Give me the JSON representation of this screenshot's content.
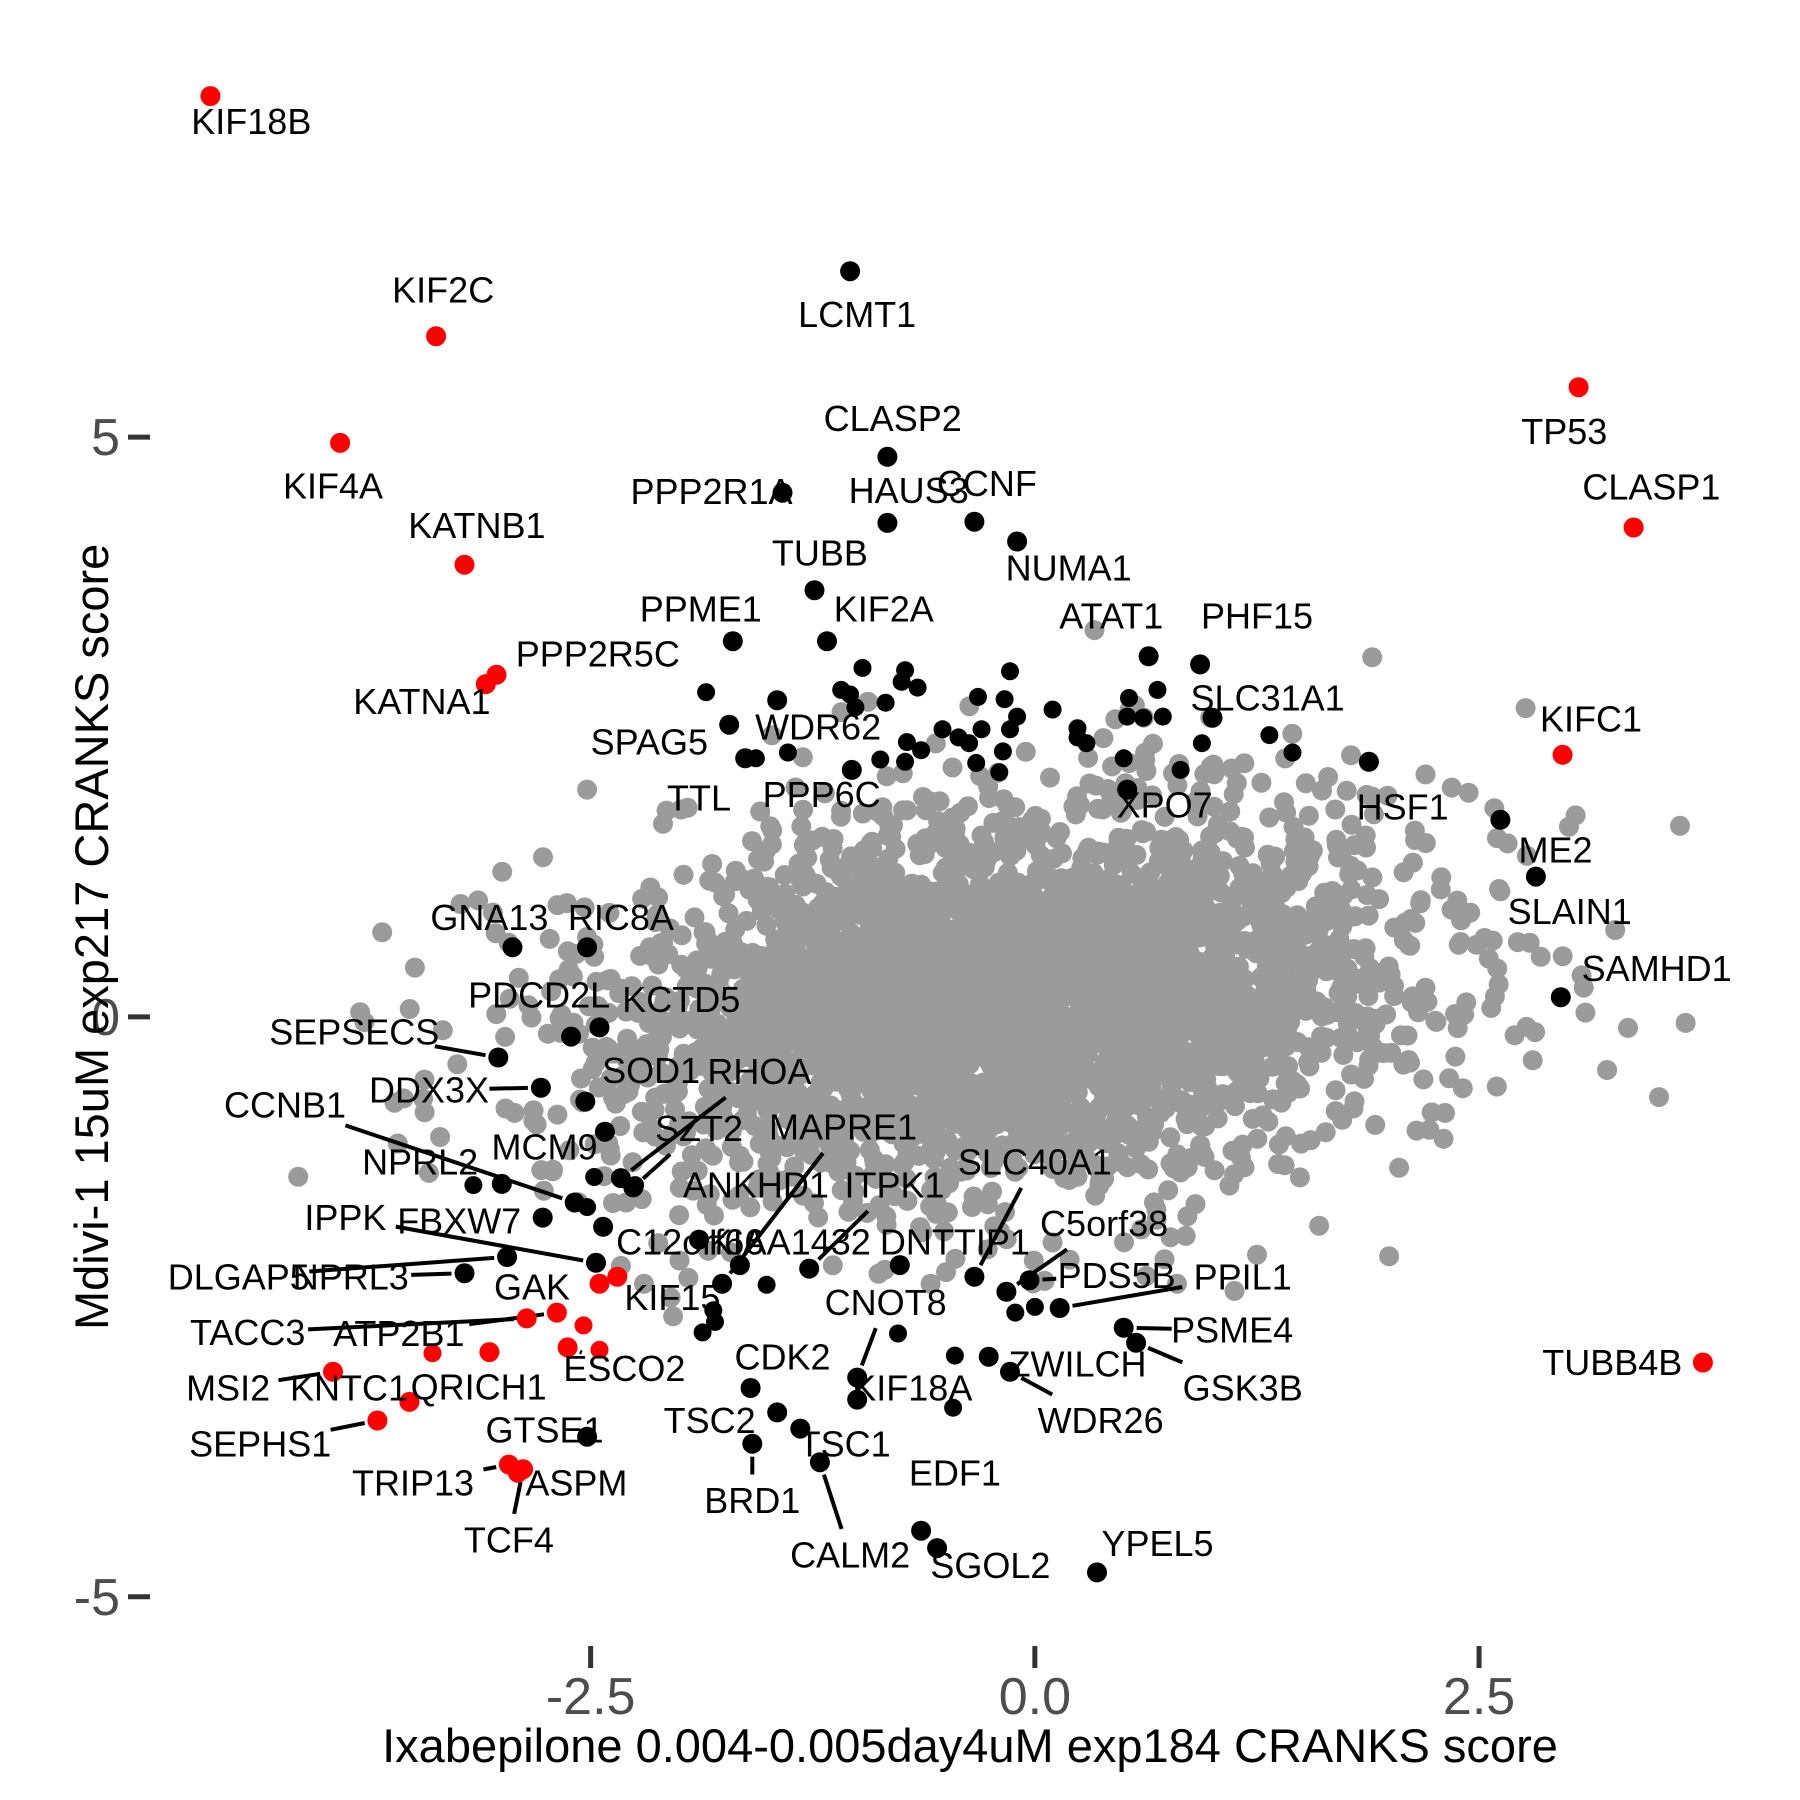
{
  "chart_data": {
    "type": "scatter",
    "title": "",
    "xlabel": "Ixabepilone 0.004-0.005day4uM exp184 CRANKS score",
    "ylabel": "Mdivi-1 15uM exp217 CRANKS score",
    "xlim": [
      -4.98,
      4.25
    ],
    "ylim": [
      -5.39,
      8.7
    ],
    "x_ticks": {
      "values": [
        -2.5,
        0,
        2.5
      ],
      "labels": [
        "-2.5",
        "0.0",
        "2.5"
      ]
    },
    "y_ticks": {
      "values": [
        -5,
        0,
        5
      ],
      "labels": [
        "-5",
        "0",
        "5"
      ]
    },
    "grid": false,
    "legend": false,
    "colors": {
      "background_point": "#9b9b9b",
      "hit_point": "#000000",
      "red_point": "#ff0000",
      "tick_mark": "#333333",
      "tick_label": "#4d4d4d",
      "leader_line": "#000000"
    },
    "point_radius": {
      "cloud": 10,
      "unlabeled": 9,
      "labeled": 10
    },
    "label_font_px": 36,
    "tick_font_px": 52,
    "background_cloud": {
      "comment": "dense unlabeled gray cloud of all other genes, approximated as bivariate normal",
      "count": 3500,
      "cx": -0.12,
      "cy": 0.18,
      "sx": 1.12,
      "sy": 0.8,
      "rho": 0.18,
      "seed": 7
    },
    "extra_gray_points": [
      [
        -2.12,
        -1.95
      ],
      [
        -2.0,
        -2.1
      ],
      [
        -1.95,
        -2.25
      ],
      [
        -2.3,
        -1.6
      ],
      [
        -2.62,
        -1.15
      ],
      [
        1.9,
        1.9
      ],
      [
        2.2,
        1.5
      ],
      [
        2.45,
        0.9
      ],
      [
        -2.6,
        0.35
      ],
      [
        -2.85,
        0.1
      ],
      [
        1.25,
        -2.05
      ],
      [
        0.8,
        -2.3
      ],
      [
        -0.5,
        -2.2
      ],
      [
        2.6,
        -0.6
      ],
      [
        -3.05,
        0.9
      ],
      [
        -2.2,
        -2.3
      ],
      [
        -2.05,
        -2.42
      ],
      [
        2.05,
        -1.3
      ],
      [
        2.3,
        -1.05
      ],
      [
        1.6,
        -1.8
      ]
    ],
    "extra_black_points": [
      [
        -0.97,
        3.01
      ],
      [
        -0.73,
        2.99
      ],
      [
        -0.75,
        2.89
      ],
      [
        -0.66,
        2.84
      ],
      [
        -1.09,
        2.82
      ],
      [
        -1.04,
        2.78
      ],
      [
        -1.01,
        2.67
      ],
      [
        -0.84,
        2.71
      ],
      [
        -1.85,
        2.8
      ],
      [
        -0.14,
        2.98
      ],
      [
        -0.17,
        2.74
      ],
      [
        -0.1,
        2.59
      ],
      [
        -0.32,
        2.76
      ],
      [
        -0.52,
        2.48
      ],
      [
        -0.3,
        2.48
      ],
      [
        -0.72,
        2.37
      ],
      [
        -0.64,
        2.3
      ],
      [
        -0.37,
        2.36
      ],
      [
        -0.43,
        2.41
      ],
      [
        -1.57,
        2.23
      ],
      [
        -1.39,
        2.28
      ],
      [
        -0.87,
        2.22
      ],
      [
        -0.73,
        2.2
      ],
      [
        -0.18,
        2.29
      ],
      [
        -0.14,
        2.48
      ],
      [
        0.1,
        2.65
      ],
      [
        0.24,
        2.49
      ],
      [
        0.24,
        2.41
      ],
      [
        0.29,
        2.36
      ],
      [
        0.53,
        2.75
      ],
      [
        0.69,
        2.82
      ],
      [
        0.52,
        2.59
      ],
      [
        0.61,
        2.58
      ],
      [
        0.72,
        2.59
      ],
      [
        0.94,
        2.36
      ],
      [
        0.5,
        2.23
      ],
      [
        0.82,
        2.13
      ],
      [
        -0.33,
        2.19
      ],
      [
        -0.2,
        2.11
      ],
      [
        1.32,
        2.43
      ],
      [
        1.45,
        2.28
      ],
      [
        -2.48,
        -1.38
      ],
      [
        -2.25,
        -1.45
      ],
      [
        -2.52,
        -1.64
      ],
      [
        -2.43,
        -1.81
      ],
      [
        -3.16,
        -1.45
      ],
      [
        -1.81,
        -2.53
      ],
      [
        -1.8,
        -2.63
      ],
      [
        -1.87,
        -2.72
      ],
      [
        -1.51,
        -2.31
      ],
      [
        -0.46,
        -3.37
      ],
      [
        -0.45,
        -2.92
      ],
      [
        -0.77,
        -2.73
      ],
      [
        -0.11,
        -2.55
      ],
      [
        0.0,
        -2.5
      ]
    ],
    "extra_red_points": [
      [
        -2.54,
        -2.66
      ],
      [
        -2.45,
        -2.87
      ],
      [
        -3.39,
        -2.9
      ]
    ],
    "genes": [
      {
        "n": "KIF18B",
        "x": -4.64,
        "y": 7.94,
        "c": "r",
        "lx": -4.41,
        "ly": 7.72,
        "ld": 0
      },
      {
        "n": "KIF2C",
        "x": -3.37,
        "y": 5.87,
        "c": "r",
        "lx": -3.33,
        "ly": 6.27,
        "ld": 0
      },
      {
        "n": "KIF4A",
        "x": -3.91,
        "y": 4.95,
        "c": "r",
        "lx": -3.95,
        "ly": 4.58,
        "ld": 0
      },
      {
        "n": "KATNB1",
        "x": -3.21,
        "y": 3.9,
        "c": "r",
        "lx": -3.14,
        "ly": 4.24,
        "ld": 0
      },
      {
        "n": "PPP2R5C",
        "x": -3.03,
        "y": 2.95,
        "c": "r",
        "lx": -2.46,
        "ly": 3.13,
        "ld": 0
      },
      {
        "n": "KATNA1",
        "x": -3.09,
        "y": 2.87,
        "c": "r",
        "lx": -3.45,
        "ly": 2.72,
        "ld": 0
      },
      {
        "n": "TP53",
        "x": 3.06,
        "y": 5.43,
        "c": "r",
        "lx": 2.98,
        "ly": 5.05,
        "ld": 0
      },
      {
        "n": "CLASP1",
        "x": 3.37,
        "y": 4.22,
        "c": "r",
        "lx": 3.47,
        "ly": 4.57,
        "ld": 0
      },
      {
        "n": "KIFC1",
        "x": 2.97,
        "y": 2.26,
        "c": "r",
        "lx": 3.13,
        "ly": 2.57,
        "ld": 0
      },
      {
        "n": "TUBB4B",
        "x": 3.76,
        "y": -2.98,
        "c": "r",
        "lx": 3.25,
        "ly": -2.98,
        "ld": 0
      },
      {
        "n": "LCMT1",
        "x": -1.04,
        "y": 6.43,
        "c": "k",
        "lx": -1.0,
        "ly": 6.06,
        "ld": 0
      },
      {
        "n": "CLASP2",
        "x": -0.83,
        "y": 4.83,
        "c": "k",
        "lx": -0.8,
        "ly": 5.16,
        "ld": 0
      },
      {
        "n": "PPP2R1A",
        "x": -1.42,
        "y": 4.52,
        "c": "k",
        "lx": -1.82,
        "ly": 4.53,
        "ld": 0
      },
      {
        "n": "HAUS3",
        "x": -0.83,
        "y": 4.26,
        "c": "k",
        "lx": -0.71,
        "ly": 4.54,
        "ld": 0
      },
      {
        "n": "CCNF",
        "x": -0.34,
        "y": 4.27,
        "c": "k",
        "lx": -0.27,
        "ly": 4.6,
        "ld": 0
      },
      {
        "n": "NUMA1",
        "x": -0.1,
        "y": 4.1,
        "c": "k",
        "lx": 0.19,
        "ly": 3.87,
        "ld": 0
      },
      {
        "n": "TUBB",
        "x": -1.24,
        "y": 3.68,
        "c": "k",
        "lx": -1.21,
        "ly": 4.0,
        "ld": 0
      },
      {
        "n": "PPME1",
        "x": -1.7,
        "y": 3.24,
        "c": "k",
        "lx": -1.88,
        "ly": 3.52,
        "ld": 0
      },
      {
        "n": "KIF2A",
        "x": -1.17,
        "y": 3.24,
        "c": "k",
        "lx": -0.85,
        "ly": 3.52,
        "ld": 0
      },
      {
        "n": "ATAT1",
        "x": 0.64,
        "y": 3.11,
        "c": "k",
        "lx": 0.43,
        "ly": 3.46,
        "ld": 0
      },
      {
        "n": "PHF15",
        "x": 0.93,
        "y": 3.04,
        "c": "k",
        "lx": 1.25,
        "ly": 3.46,
        "ld": 0
      },
      {
        "n": "SLC31A1",
        "x": 1.0,
        "y": 2.58,
        "c": "k",
        "lx": 1.31,
        "ly": 2.75,
        "ld": 0
      },
      {
        "n": "WDR62",
        "x": -1.45,
        "y": 2.73,
        "c": "k",
        "lx": -1.22,
        "ly": 2.5,
        "ld": 0
      },
      {
        "n": "SPAG5",
        "x": -1.72,
        "y": 2.52,
        "c": "k",
        "lx": -2.17,
        "ly": 2.37,
        "ld": 0
      },
      {
        "n": "TTL",
        "x": -1.63,
        "y": 2.23,
        "c": "k",
        "lx": -1.89,
        "ly": 1.89,
        "ld": 0
      },
      {
        "n": "PPP6C",
        "x": -1.03,
        "y": 2.13,
        "c": "k",
        "lx": -1.2,
        "ly": 1.92,
        "ld": 0
      },
      {
        "n": "XPO7",
        "x": 0.52,
        "y": 1.96,
        "c": "k",
        "lx": 0.73,
        "ly": 1.83,
        "ld": 0
      },
      {
        "n": "HSF1",
        "x": 1.88,
        "y": 2.2,
        "c": "k",
        "lx": 2.07,
        "ly": 1.81,
        "ld": 0
      },
      {
        "n": "ME2",
        "x": 2.62,
        "y": 1.7,
        "c": "k",
        "lx": 2.93,
        "ly": 1.44,
        "ld": 0
      },
      {
        "n": "SLAIN1",
        "x": 2.82,
        "y": 1.21,
        "c": "k",
        "lx": 3.01,
        "ly": 0.91,
        "ld": 0
      },
      {
        "n": "SAMHD1",
        "x": 2.96,
        "y": 0.17,
        "c": "k",
        "lx": 3.5,
        "ly": 0.42,
        "ld": 0
      },
      {
        "n": "GNA13",
        "x": -2.94,
        "y": 0.6,
        "c": "k",
        "lx": -3.07,
        "ly": 0.86,
        "ld": 0
      },
      {
        "n": "RIC8A",
        "x": -2.52,
        "y": 0.6,
        "c": "k",
        "lx": -2.33,
        "ly": 0.86,
        "ld": 0
      },
      {
        "n": "PDCD2L",
        "x": -2.61,
        "y": -0.17,
        "c": "k",
        "lx": -2.79,
        "ly": 0.19,
        "ld": 0
      },
      {
        "n": "KCTD5",
        "x": -2.45,
        "y": -0.09,
        "c": "k",
        "lx": -1.99,
        "ly": 0.15,
        "ld": 0
      },
      {
        "n": "SEPSECS",
        "x": -3.02,
        "y": -0.35,
        "c": "k",
        "lx": -3.83,
        "ly": -0.13,
        "ld": 1
      },
      {
        "n": "DDX3X",
        "x": -2.78,
        "y": -0.61,
        "c": "k",
        "lx": -3.41,
        "ly": -0.63,
        "ld": 1
      },
      {
        "n": "SOD1",
        "x": -2.53,
        "y": -0.73,
        "c": "k",
        "lx": -2.16,
        "ly": -0.46,
        "ld": 0
      },
      {
        "n": "RHOA",
        "x": -2.33,
        "y": -1.39,
        "c": "k",
        "lx": -1.55,
        "ly": -0.47,
        "ld": 1
      },
      {
        "n": "CCNB1",
        "x": -2.59,
        "y": -1.6,
        "c": "k",
        "lx": -4.22,
        "ly": -0.76,
        "ld": 1
      },
      {
        "n": "MCM9",
        "x": -2.42,
        "y": -0.99,
        "c": "k",
        "lx": -2.76,
        "ly": -1.12,
        "ld": 0
      },
      {
        "n": "SZT2",
        "x": -2.26,
        "y": -1.47,
        "c": "k",
        "lx": -1.89,
        "ly": -0.96,
        "ld": 1
      },
      {
        "n": "NPRL2",
        "x": -3.0,
        "y": -1.44,
        "c": "k",
        "lx": -3.46,
        "ly": -1.25,
        "ld": 0
      },
      {
        "n": "MAPRE1",
        "x": -1.76,
        "y": -2.3,
        "c": "k",
        "lx": -1.08,
        "ly": -0.95,
        "ld": 1
      },
      {
        "n": "ANKHD1",
        "x": -1.89,
        "y": -1.92,
        "c": "k",
        "lx": -1.57,
        "ly": -1.45,
        "ld": 0
      },
      {
        "n": "ITPK1",
        "x": -1.27,
        "y": -2.17,
        "c": "k",
        "lx": -0.79,
        "ly": -1.45,
        "ld": 1
      },
      {
        "n": "C12orf66",
        "x": -2.43,
        "y": -1.81,
        "c": "k",
        "lx": -1.94,
        "ly": -1.94,
        "ld": 0
      },
      {
        "n": "KIAA1432",
        "x": -1.66,
        "y": -2.14,
        "c": "k",
        "lx": -1.38,
        "ly": -1.94,
        "ld": 0
      },
      {
        "n": "DNTTIP1",
        "x": -0.76,
        "y": -2.14,
        "c": "k",
        "lx": -0.45,
        "ly": -1.94,
        "ld": 0
      },
      {
        "n": "SLC40A1",
        "x": -0.34,
        "y": -2.24,
        "c": "k",
        "lx": 0.0,
        "ly": -1.25,
        "ld": 1
      },
      {
        "n": "C5orf38",
        "x": -0.16,
        "y": -2.37,
        "c": "k",
        "lx": 0.39,
        "ly": -1.78,
        "ld": 1
      },
      {
        "n": "DLGAP5",
        "x": -2.97,
        "y": -2.07,
        "c": "k",
        "lx": -4.48,
        "ly": -2.24,
        "ld": 1
      },
      {
        "n": "NPRL3",
        "x": -3.21,
        "y": -2.21,
        "c": "k",
        "lx": -3.85,
        "ly": -2.24,
        "ld": 1
      },
      {
        "n": "GAK",
        "x": -2.45,
        "y": -2.3,
        "c": "r",
        "lx": -2.83,
        "ly": -2.33,
        "ld": 0
      },
      {
        "n": "KIF15",
        "x": -2.35,
        "y": -2.24,
        "c": "r",
        "lx": -2.04,
        "ly": -2.42,
        "ld": 0
      },
      {
        "n": "IPPK",
        "x": -2.47,
        "y": -2.12,
        "c": "k",
        "lx": -3.88,
        "ly": -1.73,
        "ld": 1
      },
      {
        "n": "FBXW7",
        "x": -2.77,
        "y": -1.73,
        "c": "k",
        "lx": -3.24,
        "ly": -1.76,
        "ld": 0
      },
      {
        "n": "PDS5B",
        "x": -0.03,
        "y": -2.27,
        "c": "k",
        "lx": 0.46,
        "ly": -2.23,
        "ld": 1
      },
      {
        "n": "PPIL1",
        "x": 0.14,
        "y": -2.51,
        "c": "k",
        "lx": 1.17,
        "ly": -2.24,
        "ld": 1
      },
      {
        "n": "PSME4",
        "x": 0.5,
        "y": -2.68,
        "c": "k",
        "lx": 1.11,
        "ly": -2.7,
        "ld": 1
      },
      {
        "n": "GSK3B",
        "x": 0.57,
        "y": -2.81,
        "c": "k",
        "lx": 1.17,
        "ly": -3.2,
        "ld": 1
      },
      {
        "n": "ZWILCH",
        "x": -0.26,
        "y": -2.93,
        "c": "k",
        "lx": 0.24,
        "ly": -2.99,
        "ld": 0
      },
      {
        "n": "WDR26",
        "x": -0.14,
        "y": -3.06,
        "c": "k",
        "lx": 0.37,
        "ly": -3.48,
        "ld": 1
      },
      {
        "n": "CNOT8",
        "x": -1.0,
        "y": -3.11,
        "c": "k",
        "lx": -0.84,
        "ly": -2.46,
        "ld": 1
      },
      {
        "n": "KIF18A",
        "x": -1.0,
        "y": -3.3,
        "c": "k",
        "lx": -0.69,
        "ly": -3.2,
        "ld": 0
      },
      {
        "n": "CDK2",
        "x": -1.6,
        "y": -3.2,
        "c": "k",
        "lx": -1.42,
        "ly": -2.93,
        "ld": 0
      },
      {
        "n": "TSC2",
        "x": -1.45,
        "y": -3.41,
        "c": "k",
        "lx": -1.83,
        "ly": -3.48,
        "ld": 0
      },
      {
        "n": "TSC1",
        "x": -1.32,
        "y": -3.55,
        "c": "k",
        "lx": -1.07,
        "ly": -3.68,
        "ld": 0
      },
      {
        "n": "BRD1",
        "x": -1.59,
        "y": -3.68,
        "c": "k",
        "lx": -1.59,
        "ly": -4.17,
        "ld": 1
      },
      {
        "n": "CALM2",
        "x": -1.21,
        "y": -3.84,
        "c": "k",
        "lx": -1.04,
        "ly": -4.64,
        "ld": 1
      },
      {
        "n": "EDF1",
        "x": -0.64,
        "y": -4.43,
        "c": "k",
        "lx": -0.45,
        "ly": -3.93,
        "ld": 0
      },
      {
        "n": "SGOL2",
        "x": -0.55,
        "y": -4.58,
        "c": "k",
        "lx": -0.25,
        "ly": -4.73,
        "ld": 0
      },
      {
        "n": "YPEL5",
        "x": 0.35,
        "y": -4.79,
        "c": "k",
        "lx": 0.69,
        "ly": -4.54,
        "ld": 0
      },
      {
        "n": "GTSE1",
        "x": -2.52,
        "y": -3.62,
        "c": "k",
        "lx": -2.76,
        "ly": -3.56,
        "ld": 0
      },
      {
        "n": "TACC3",
        "x": -2.86,
        "y": -2.6,
        "c": "r",
        "lx": -4.43,
        "ly": -2.72,
        "ld": 1
      },
      {
        "n": "ATP2B1",
        "x": -2.69,
        "y": -2.55,
        "c": "r",
        "lx": -3.58,
        "ly": -2.73,
        "ld": 1
      },
      {
        "n": "ESCO2",
        "x": -2.63,
        "y": -2.85,
        "c": "r",
        "lx": -2.31,
        "ly": -3.03,
        "ld": 1
      },
      {
        "n": "QRICH1",
        "x": -3.07,
        "y": -2.89,
        "c": "r",
        "lx": -3.13,
        "ly": -3.19,
        "ld": 0
      },
      {
        "n": "MSI2",
        "x": -3.95,
        "y": -3.06,
        "c": "r",
        "lx": -4.54,
        "ly": -3.2,
        "ld": 1
      },
      {
        "n": "KNTC1",
        "x": -3.52,
        "y": -3.32,
        "c": "r",
        "lx": -3.86,
        "ly": -3.2,
        "ld": 0
      },
      {
        "n": "SEPHS1",
        "x": -3.7,
        "y": -3.48,
        "c": "r",
        "lx": -4.36,
        "ly": -3.68,
        "ld": 1
      },
      {
        "n": "TRIP13",
        "x": -2.96,
        "y": -3.86,
        "c": "r",
        "lx": -3.5,
        "ly": -4.02,
        "ld": 1
      },
      {
        "n": "ASPM",
        "x": -2.91,
        "y": -3.93,
        "c": "r",
        "lx": -2.58,
        "ly": -4.02,
        "ld": 0
      },
      {
        "n": "TCF4",
        "x": -2.88,
        "y": -3.9,
        "c": "r",
        "lx": -2.96,
        "ly": -4.51,
        "ld": 1
      }
    ]
  }
}
